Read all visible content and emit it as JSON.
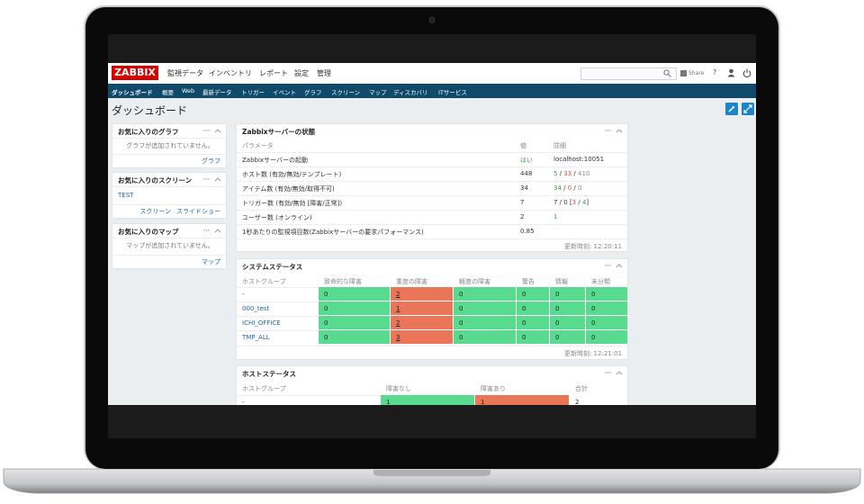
{
  "header": {
    "logo": "ZABBIX",
    "menu": [
      "監視データ",
      "インベントリ",
      "レポート",
      "設定",
      "管理"
    ],
    "share": "Share",
    "help": "?"
  },
  "subnav": [
    "ダッシュボード",
    "概要",
    "Web",
    "最新データ",
    "トリガー",
    "イベント",
    "グラフ",
    "スクリーン",
    "マップ",
    "ディスカバリ",
    "ITサービス"
  ],
  "page_title": "ダッシュボード",
  "favorites": [
    {
      "title": "お気に入りのグラフ",
      "message": "グラフが追加されていません。",
      "links": [
        "グラフ"
      ]
    },
    {
      "title": "お気に入りのスクリーン",
      "items": [
        "TEST"
      ],
      "links": [
        "スクリーン",
        "スライドショー"
      ]
    },
    {
      "title": "お気に入りのマップ",
      "message": "マップが追加されていません。",
      "links": [
        "マップ"
      ]
    }
  ],
  "server_status": {
    "title": "Zabbixサーバーの状態",
    "columns": [
      "パラメータ",
      "値",
      "詳細"
    ],
    "rows": [
      {
        "parameter": "Zabbixサーバーの起動",
        "value": "はい",
        "value_color": "#3c9d3c",
        "detail": [
          {
            "text": "localhost:10051",
            "color": "#333333"
          }
        ]
      },
      {
        "parameter": "ホスト数 (有効/無効/テンプレート)",
        "value": "448",
        "detail": [
          {
            "text": "5",
            "color": "#3c9d3c"
          },
          {
            "text": " / ",
            "color": "#333333"
          },
          {
            "text": "33",
            "color": "#d64e4e"
          },
          {
            "text": " / ",
            "color": "#333333"
          },
          {
            "text": "410",
            "color": "#888888"
          }
        ]
      },
      {
        "parameter": "アイテム数 (有効/無効/取得不可)",
        "value": "34",
        "detail": [
          {
            "text": "34",
            "color": "#3c9d3c"
          },
          {
            "text": " / ",
            "color": "#333333"
          },
          {
            "text": "0",
            "color": "#d64e4e"
          },
          {
            "text": " / ",
            "color": "#333333"
          },
          {
            "text": "0",
            "color": "#888888"
          }
        ]
      },
      {
        "parameter": "トリガー数 (有効/無効 [障害/正常])",
        "value": "7",
        "detail": [
          {
            "text": "7 / 0 [",
            "color": "#333333"
          },
          {
            "text": "3",
            "color": "#d64e4e"
          },
          {
            "text": " / ",
            "color": "#333333"
          },
          {
            "text": "4",
            "color": "#3c9d3c"
          },
          {
            "text": "]",
            "color": "#333333"
          }
        ]
      },
      {
        "parameter": "ユーザー数 (オンライン)",
        "value": "2",
        "detail": [
          {
            "text": "1",
            "color": "#3c9d3c"
          }
        ]
      },
      {
        "parameter": "1秒あたりの監視項目数(Zabbixサーバーの要求パフォーマンス)",
        "value": "0.85"
      }
    ],
    "updated": "更新時刻: 12:20:11"
  },
  "system_status": {
    "title": "システムステータス",
    "columns": [
      "ホストグループ",
      "致命的な障害",
      "重度の障害",
      "軽度の障害",
      "警告",
      "情報",
      "未分類"
    ],
    "rows": [
      {
        "group": "-",
        "counts": [
          0,
          2,
          0,
          0,
          0,
          0
        ]
      },
      {
        "group": "000_test",
        "counts": [
          0,
          1,
          0,
          0,
          0,
          0
        ]
      },
      {
        "group": "ICHI_OFFICE",
        "counts": [
          0,
          2,
          0,
          0,
          0,
          0
        ]
      },
      {
        "group": "TMP_ALL",
        "counts": [
          0,
          3,
          0,
          0,
          0,
          0
        ]
      }
    ],
    "ok_color": "#59db8f",
    "problem_color": "#e97659",
    "updated": "更新時刻: 12:21:01"
  },
  "host_status": {
    "title": "ホストステータス",
    "columns": [
      "ホストグループ",
      "障害なし",
      "障害あり",
      "合計"
    ],
    "rows": [
      {
        "group": "-",
        "counts": [
          1,
          1,
          2
        ]
      }
    ],
    "colors": [
      "#59db8f",
      "#e97659",
      "#ffffff"
    ]
  }
}
